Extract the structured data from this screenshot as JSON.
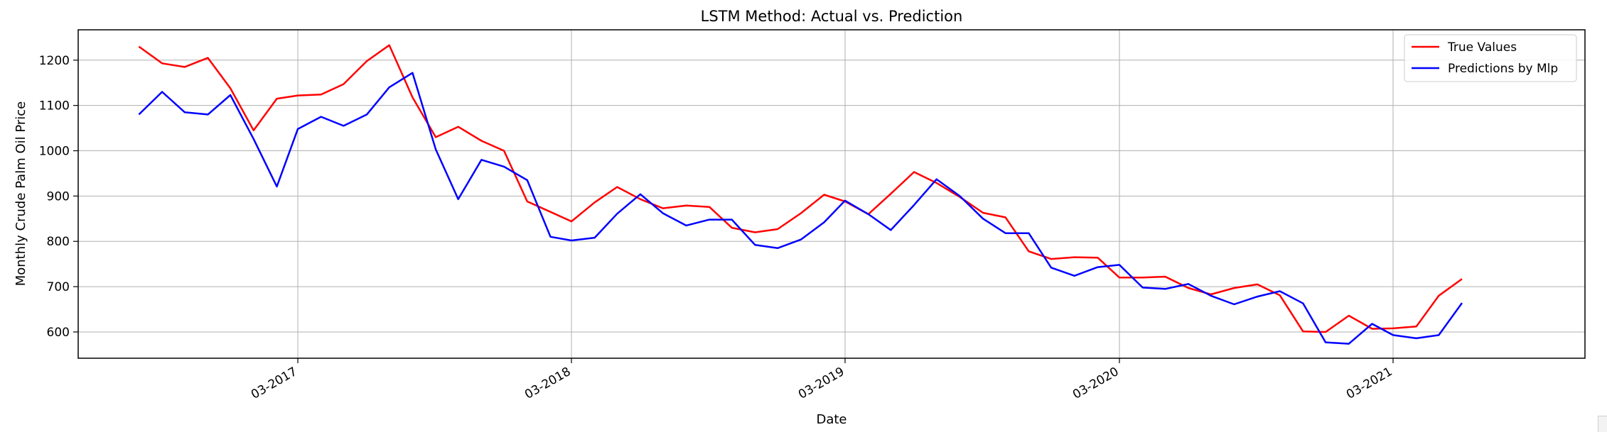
{
  "chart_data": {
    "type": "line",
    "title": "LSTM Method: Actual vs. Prediction",
    "xlabel": "Date",
    "ylabel": "Monthly Crude Palm Oil Price",
    "xlim": [
      "2016-05-12",
      "2021-11-12"
    ],
    "ylim": [
      542,
      1267
    ],
    "yticks": [
      600,
      700,
      800,
      900,
      1000,
      1100,
      1200
    ],
    "xticks": [
      {
        "date": "2017-03-01",
        "label": "03-2017"
      },
      {
        "date": "2018-03-01",
        "label": "03-2018"
      },
      {
        "date": "2019-03-01",
        "label": "03-2019"
      },
      {
        "date": "2020-03-01",
        "label": "03-2020"
      },
      {
        "date": "2021-03-01",
        "label": "03-2021"
      }
    ],
    "grid": true,
    "legend_position": "top-right",
    "x": [
      "2016-08",
      "2016-09",
      "2016-10",
      "2016-11",
      "2016-12",
      "2017-01",
      "2017-02",
      "2017-03",
      "2017-04",
      "2017-05",
      "2017-06",
      "2017-07",
      "2017-08",
      "2017-09",
      "2017-10",
      "2017-11",
      "2017-12",
      "2018-01",
      "2018-02",
      "2018-03",
      "2018-04",
      "2018-05",
      "2018-06",
      "2018-07",
      "2018-08",
      "2018-09",
      "2018-10",
      "2018-11",
      "2018-12",
      "2019-01",
      "2019-02",
      "2019-03",
      "2019-04",
      "2019-05",
      "2019-06",
      "2019-07",
      "2019-08",
      "2019-09",
      "2019-10",
      "2019-11",
      "2019-12",
      "2020-01",
      "2020-02",
      "2020-03",
      "2020-04",
      "2020-05",
      "2020-06",
      "2020-07",
      "2020-08",
      "2020-09",
      "2020-10",
      "2020-11",
      "2020-12",
      "2021-01",
      "2021-02",
      "2021-03",
      "2021-04",
      "2021-05",
      "2021-06"
    ],
    "series": [
      {
        "name": "True Values",
        "color": "#ff0000",
        "values": [
          1230,
          1193,
          1185,
          1205,
          1138,
          1045,
          1115,
          1122,
          1124,
          1147,
          1198,
          1233,
          1118,
          1030,
          1053,
          1022,
          1000,
          888,
          865,
          844,
          886,
          920,
          893,
          873,
          879,
          876,
          830,
          820,
          827,
          862,
          903,
          888,
          860,
          905,
          953,
          929,
          898,
          863,
          853,
          778,
          761,
          765,
          764,
          720,
          720,
          722,
          697,
          683,
          697,
          705,
          681,
          601,
          600,
          636,
          607,
          608,
          612,
          680,
          717
        ]
      },
      {
        "name": "Predictions by Mlp",
        "color": "#0000ff",
        "values": [
          1080,
          1130,
          1085,
          1080,
          1123,
          1026,
          921,
          1048,
          1075,
          1055,
          1080,
          1140,
          1172,
          1003,
          893,
          980,
          965,
          935,
          810,
          802,
          808,
          861,
          904,
          862,
          835,
          848,
          848,
          792,
          785,
          804,
          842,
          890,
          860,
          825,
          880,
          937,
          900,
          850,
          818,
          818,
          742,
          724,
          743,
          748,
          698,
          695,
          706,
          680,
          661,
          678,
          690,
          663,
          577,
          574,
          618,
          593,
          586,
          593,
          664
        ]
      }
    ]
  }
}
